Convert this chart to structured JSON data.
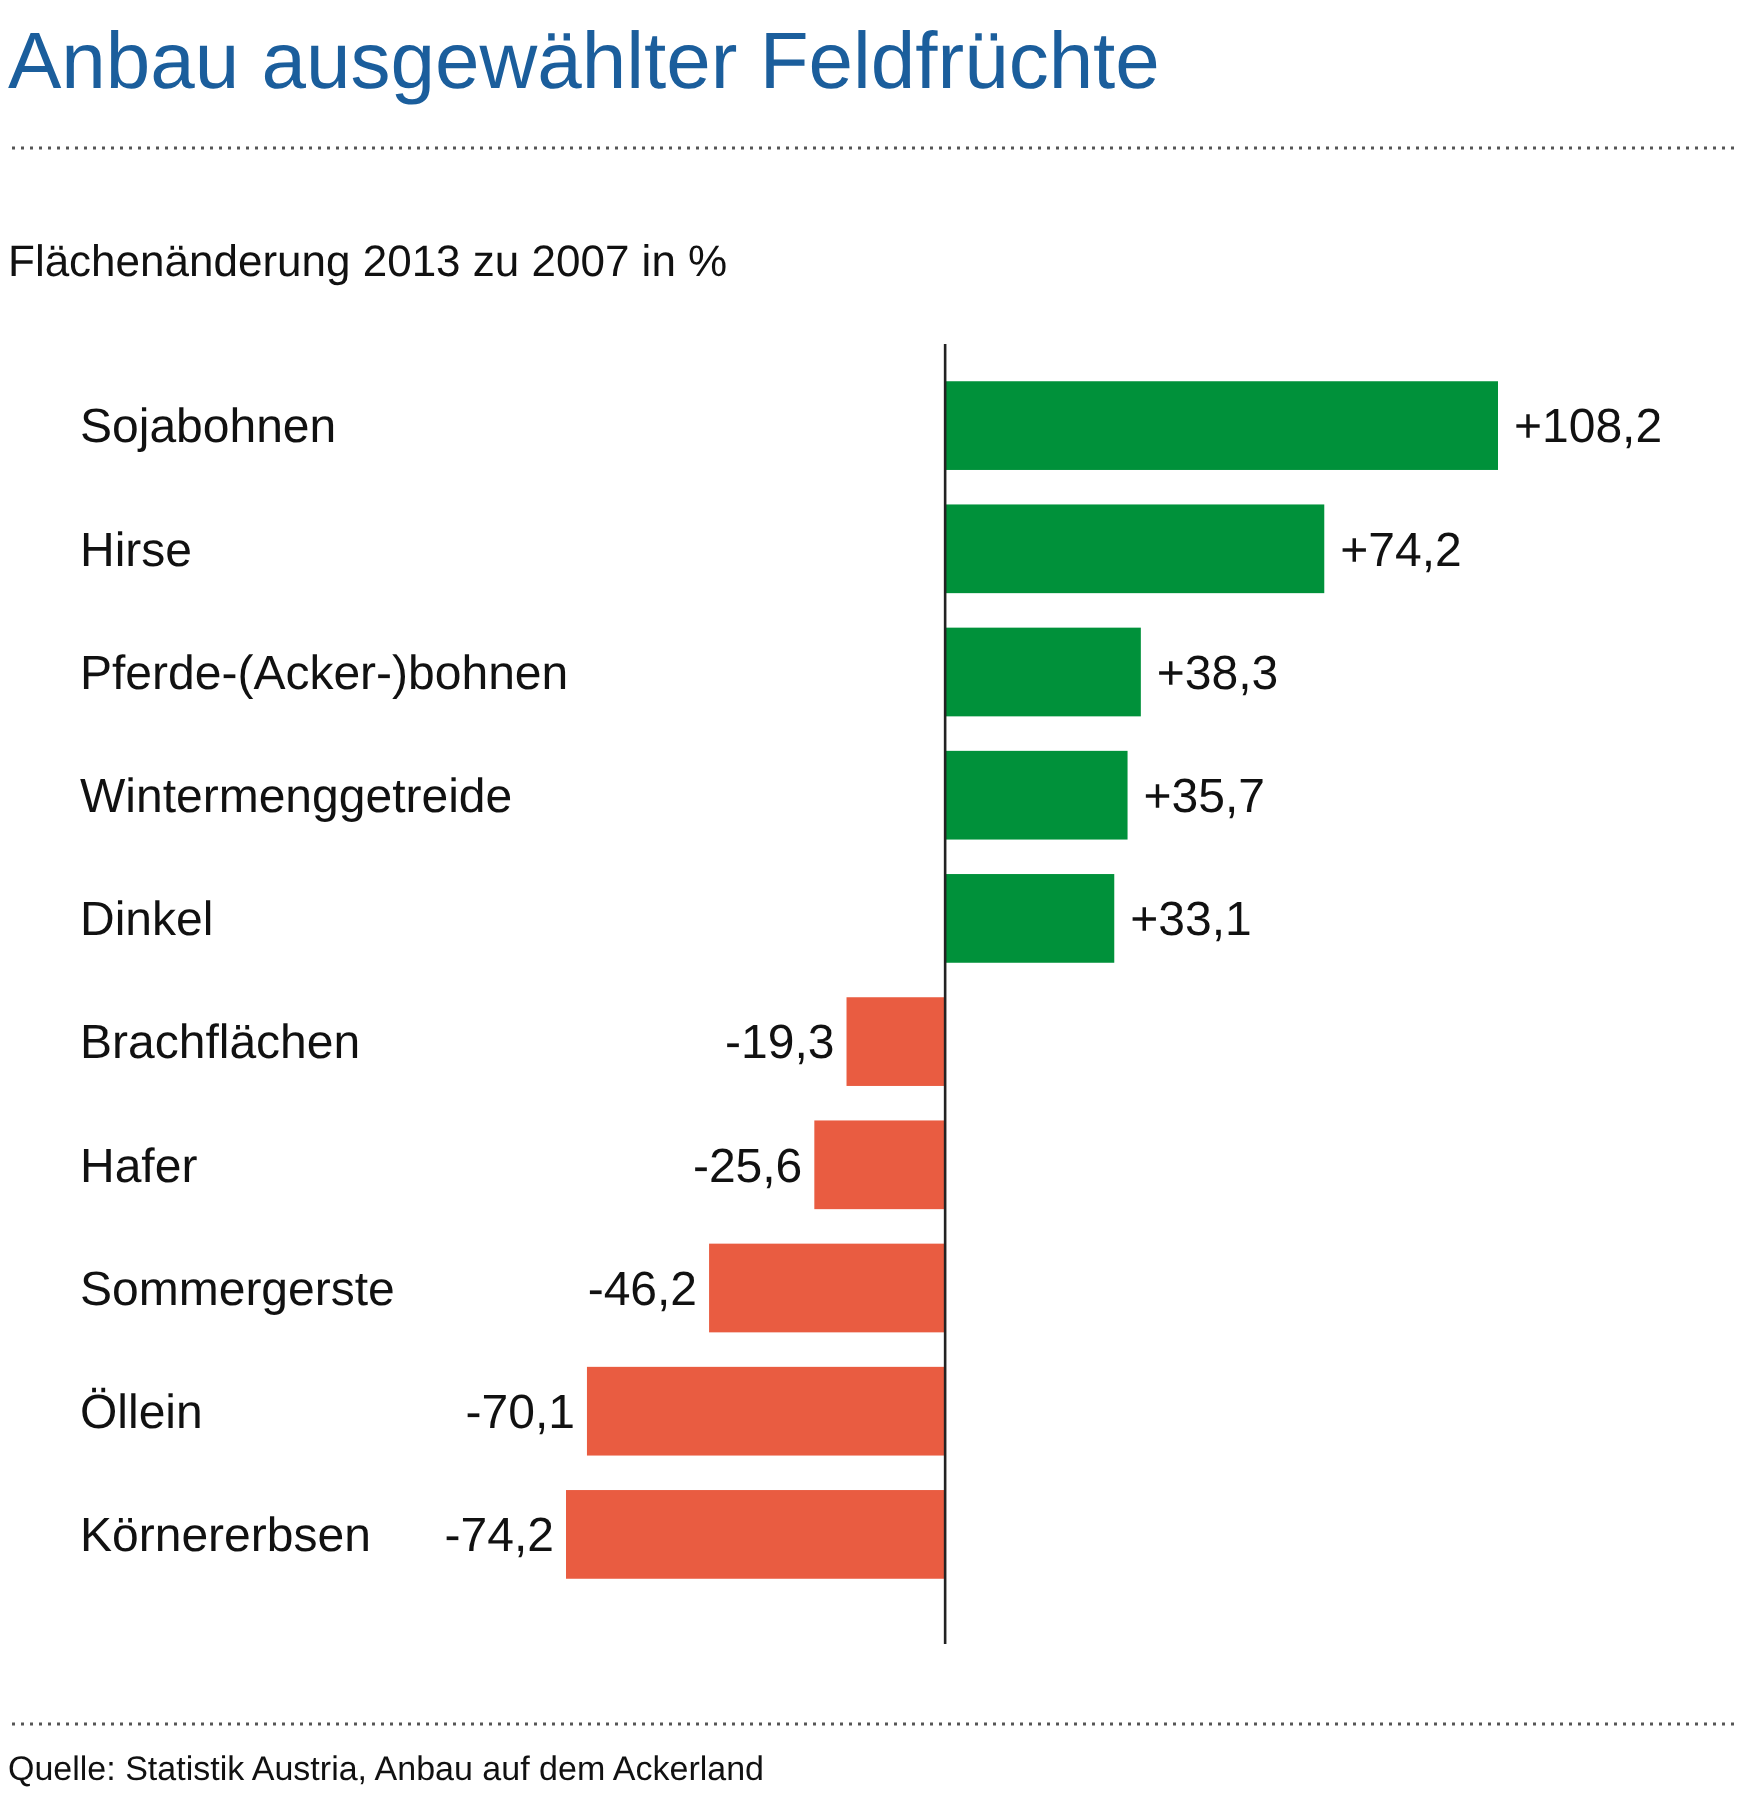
{
  "chart_data": {
    "type": "bar",
    "orientation": "horizontal",
    "title": "Anbau ausgewählter Feldfrüchte",
    "subtitle": "Flächenänderung 2013 zu 2007 in %",
    "categories": [
      "Sojabohnen",
      "Hirse",
      "Pferde-(Acker-)bohnen",
      "Wintermenggetreide",
      "Dinkel",
      "Brachflächen",
      "Hafer",
      "Sommergerste",
      "Öllein",
      "Körnererbsen"
    ],
    "values": [
      108.2,
      74.2,
      38.3,
      35.7,
      33.1,
      -19.3,
      -25.6,
      -46.2,
      -70.1,
      -74.2
    ],
    "colors": [
      "#00913a",
      "#00913a",
      "#00913a",
      "#00913a",
      "#00913a",
      "#e95c41",
      "#e95c41",
      "#e95c41",
      "#e95c41",
      "#e95c41"
    ],
    "value_labels": [
      "+108,2",
      "+74,2",
      "+38,3",
      "+35,7",
      "+33,1",
      "-19,3",
      "-25,6",
      "-46,2",
      "-70,1",
      "-74,2"
    ],
    "annotations": [
      "Quelle: Statistik Austria, Anbau auf dem Ackerland"
    ]
  }
}
